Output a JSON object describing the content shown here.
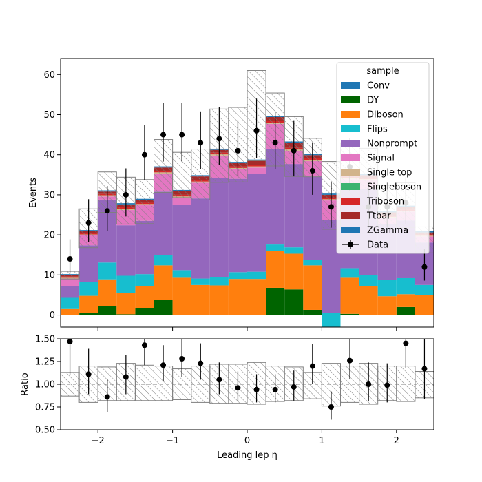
{
  "chart_data": {
    "type": "bar",
    "stacked": true,
    "x_edges": [
      -2.5,
      -2.25,
      -2.0,
      -1.75,
      -1.5,
      -1.25,
      -1.0,
      -0.75,
      -0.5,
      -0.25,
      0.0,
      0.25,
      0.5,
      0.75,
      1.0,
      1.25,
      1.5,
      1.75,
      2.0,
      2.25,
      2.5
    ],
    "xlabel": "Leading lep η",
    "ylabel": "Events",
    "ylim": [
      -3,
      64
    ],
    "yticks": [
      0,
      10,
      20,
      30,
      40,
      50,
      60
    ],
    "xticks": [
      -2,
      -1,
      0,
      1,
      2
    ],
    "legend": {
      "title": "sample",
      "placement": "top-right",
      "entries": [
        "Conv",
        "DY",
        "Diboson",
        "Flips",
        "Nonprompt",
        "Signal",
        "Single top",
        "Singleboson",
        "Triboson",
        "Ttbar",
        "ZGamma",
        "Data"
      ]
    },
    "series": [
      {
        "name": "Conv",
        "color": "#1f77b4",
        "values": [
          0,
          0,
          0,
          0,
          0,
          0,
          0,
          0,
          0,
          0,
          0,
          0,
          0,
          0,
          0,
          0,
          0,
          0,
          0,
          0
        ]
      },
      {
        "name": "DY",
        "color": "#006400",
        "values": [
          0,
          0.5,
          2.2,
          0.2,
          1.7,
          3.7,
          0,
          0,
          0,
          0,
          0,
          6.8,
          6.4,
          1.3,
          0,
          0.3,
          0,
          0,
          2.0,
          0
        ]
      },
      {
        "name": "Diboson",
        "color": "#ff7f0e",
        "values": [
          1.5,
          4.3,
          6.7,
          5.3,
          5.6,
          8.7,
          9.3,
          7.5,
          7.4,
          9.0,
          9.0,
          9.2,
          8.9,
          11.1,
          -3.0,
          9.0,
          7.2,
          4.7,
          3.2,
          5.0
        ]
      },
      {
        "name": "Flips",
        "color": "#17becf",
        "values": [
          2.8,
          3.4,
          4.2,
          4.3,
          2.9,
          2.6,
          1.9,
          1.6,
          2.0,
          1.7,
          1.8,
          1.6,
          1.6,
          1.4,
          3.5,
          2.4,
          2.8,
          4.0,
          4.0,
          2.5
        ]
      },
      {
        "name": "Nonprompt",
        "color": "#9467bd",
        "values": [
          3.0,
          9.2,
          15.7,
          12.6,
          13.3,
          15.8,
          16.3,
          20.0,
          24.8,
          23.3,
          24.5,
          23.9,
          20.8,
          20.8,
          23.3,
          20.3,
          21.4,
          14.0,
          14.4,
          10.6
        ]
      },
      {
        "name": "Signal",
        "color": "#e377c2",
        "values": [
          1.8,
          2.5,
          0.8,
          3.8,
          3.9,
          4.5,
          1.8,
          3.9,
          5.6,
          2.4,
          1.5,
          6.2,
          3.3,
          3.8,
          4.8,
          1.9,
          2.2,
          1.6,
          2.2,
          1.5
        ]
      },
      {
        "name": "Single top",
        "color": "#d2b48c",
        "values": [
          0.2,
          0.2,
          0.3,
          0.3,
          0.3,
          0.3,
          0.3,
          0.3,
          0.3,
          0.3,
          0.3,
          0.3,
          0.3,
          0.3,
          0.3,
          0.3,
          0.3,
          0.2,
          0.2,
          0.2
        ]
      },
      {
        "name": "Singleboson",
        "color": "#3cb371",
        "values": [
          0,
          0,
          0,
          0,
          0,
          0,
          0,
          0,
          0,
          0,
          0,
          0,
          0,
          0,
          0,
          0,
          0,
          0,
          0,
          0
        ]
      },
      {
        "name": "Triboson",
        "color": "#d62728",
        "values": [
          0.3,
          0.3,
          0.3,
          0.4,
          0.3,
          0.4,
          0.4,
          0.4,
          0.4,
          0.4,
          0.4,
          0.4,
          0.4,
          0.4,
          0.3,
          0.4,
          0.3,
          0.3,
          0.3,
          0.3
        ]
      },
      {
        "name": "Ttbar",
        "color": "#a52a2a",
        "values": [
          0.3,
          0.5,
          0.6,
          0.7,
          0.7,
          0.8,
          0.9,
          0.9,
          0.7,
          0.8,
          1.0,
          1.0,
          1.3,
          0.8,
          0.8,
          0.7,
          0.7,
          0.8,
          0.7,
          0.5
        ]
      },
      {
        "name": "ZGamma",
        "color": "#1f77b4",
        "values": [
          0.3,
          0.3,
          0.3,
          0.3,
          0.3,
          0.3,
          0.3,
          0.3,
          0.3,
          0.3,
          0.3,
          0.3,
          0.3,
          0.3,
          0.3,
          0.3,
          0.3,
          0.3,
          0.3,
          0.3
        ]
      }
    ],
    "uncertainty_band": {
      "up": [
        10.9,
        26.5,
        35.7,
        34.4,
        33.8,
        43.8,
        40.6,
        41.4,
        51.4,
        51.8,
        61.0,
        55.4,
        49.5,
        44.1,
        38.3,
        43.0,
        41.6,
        32.3,
        33.0,
        22.0
      ],
      "down": [
        9.0,
        16.8,
        25.6,
        22.7,
        22.8,
        30.6,
        29.3,
        28.7,
        33.1,
        33.2,
        38.5,
        37.2,
        34.6,
        34.5,
        21.4,
        29.0,
        26.5,
        22.0,
        21.9,
        15.5
      ]
    },
    "data": {
      "name": "Data",
      "values": [
        14,
        23,
        26,
        30,
        40,
        45,
        45,
        43,
        44,
        41,
        46,
        43,
        41,
        36,
        27,
        37,
        27,
        27,
        28,
        12
      ],
      "err_up": [
        4.9,
        5.9,
        6.2,
        6.6,
        7.5,
        8.0,
        8.0,
        7.8,
        7.9,
        7.6,
        8.0,
        7.8,
        7.6,
        7.1,
        6.2,
        7.2,
        6.2,
        6.2,
        6.4,
        4.5
      ],
      "err_down": [
        3.7,
        4.8,
        5.1,
        5.4,
        6.3,
        6.7,
        6.7,
        6.5,
        6.6,
        6.4,
        6.8,
        6.5,
        6.4,
        6.0,
        5.2,
        6.0,
        5.2,
        5.2,
        5.3,
        3.4
      ]
    },
    "ratio": {
      "ylabel": "Ratio",
      "ylim": [
        0.5,
        1.5
      ],
      "yticks": [
        0.5,
        0.75,
        1.0,
        1.25,
        1.5
      ],
      "ytick_labels": [
        "0.50",
        "0.75",
        "1.00",
        "1.25",
        "1.50"
      ],
      "values": [
        1.47,
        1.11,
        0.86,
        1.08,
        1.43,
        1.21,
        1.28,
        1.23,
        1.05,
        0.96,
        0.94,
        0.94,
        0.97,
        1.2,
        0.75,
        1.26,
        1.0,
        0.99,
        1.45,
        1.17
      ],
      "err_up": [
        0.5,
        0.28,
        0.2,
        0.24,
        0.28,
        0.22,
        0.26,
        0.22,
        0.19,
        0.18,
        0.17,
        0.17,
        0.18,
        0.24,
        0.17,
        0.25,
        0.24,
        0.24,
        0.33,
        0.44
      ],
      "err_down": [
        0.37,
        0.22,
        0.17,
        0.19,
        0.22,
        0.18,
        0.2,
        0.18,
        0.16,
        0.15,
        0.14,
        0.14,
        0.15,
        0.2,
        0.14,
        0.2,
        0.19,
        0.19,
        0.27,
        0.33
      ],
      "band_up": [
        1.13,
        1.2,
        1.19,
        1.23,
        1.21,
        1.2,
        1.17,
        1.2,
        1.22,
        1.22,
        1.24,
        1.2,
        1.19,
        1.13,
        1.23,
        1.2,
        1.23,
        1.2,
        1.2,
        1.14
      ],
      "band_down": [
        0.87,
        0.8,
        0.82,
        0.82,
        0.82,
        0.82,
        0.83,
        0.8,
        0.79,
        0.79,
        0.78,
        0.81,
        0.82,
        0.84,
        0.76,
        0.8,
        0.78,
        0.82,
        0.81,
        0.85
      ]
    }
  }
}
